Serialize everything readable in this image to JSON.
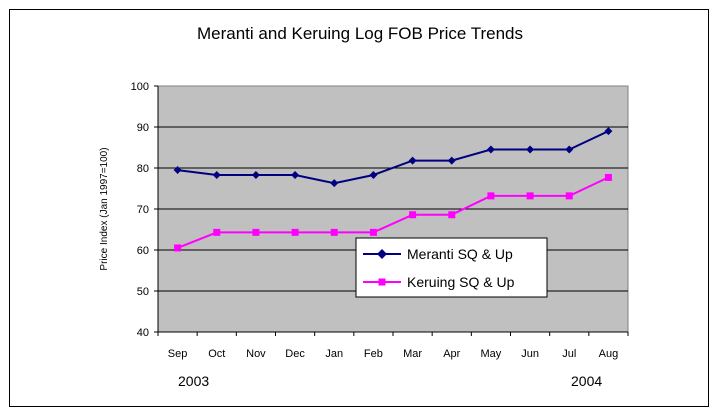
{
  "chart_data": {
    "type": "line",
    "title": "Meranti and Keruing Log FOB Price Trends",
    "ylabel": "Price Index (Jan 1997=100)",
    "xlabel": "",
    "ylim": [
      40,
      100
    ],
    "yticks": [
      40,
      50,
      60,
      70,
      80,
      90,
      100
    ],
    "grid": true,
    "legend_position": "center-right",
    "plot_background": "#c0c0c0",
    "categories": [
      "Sep",
      "Oct",
      "Nov",
      "Dec",
      "Jan",
      "Feb",
      "Mar",
      "Apr",
      "May",
      "Jun",
      "Jul",
      "Aug"
    ],
    "year_labels": [
      "2003",
      "2004"
    ],
    "series": [
      {
        "name": "Meranti SQ & Up",
        "color": "#000080",
        "marker": "diamond",
        "values": [
          79.5,
          78.3,
          78.3,
          78.3,
          76.3,
          78.3,
          81.8,
          81.8,
          84.5,
          84.5,
          84.5,
          89.0
        ]
      },
      {
        "name": "Keruing SQ & Up",
        "color": "#ff00ff",
        "marker": "square",
        "values": [
          60.5,
          64.3,
          64.3,
          64.3,
          64.3,
          64.3,
          68.6,
          68.6,
          73.2,
          73.2,
          73.2,
          77.7
        ]
      }
    ]
  }
}
